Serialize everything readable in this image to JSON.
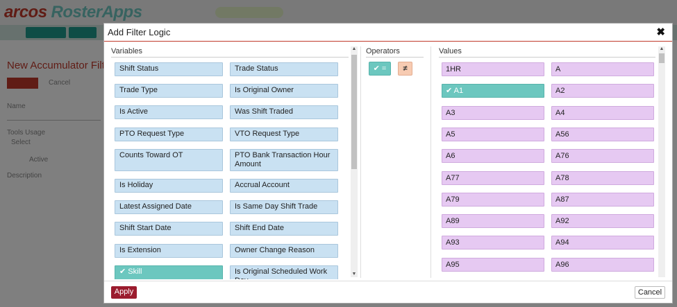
{
  "background": {
    "logo": "arcos",
    "logo_product": "RosterApps",
    "title": "New Accumulator Filt",
    "cancel_label": "Cancel",
    "name_label": "Name",
    "tools_usage_label": "Tools Usage",
    "select_value": "Select",
    "active_label": "Active",
    "description_label": "Description"
  },
  "dialog": {
    "title": "Add Filter Logic",
    "close_icon": "close-icon",
    "variables_title": "Variables",
    "operators_title": "Operators",
    "values_title": "Values",
    "apply_label": "Apply",
    "cancel_label": "Cancel"
  },
  "variables": [
    {
      "label": "Shift Status",
      "selected": false
    },
    {
      "label": "Trade Status",
      "selected": false
    },
    {
      "label": "Trade Type",
      "selected": false
    },
    {
      "label": "Is Original Owner",
      "selected": false
    },
    {
      "label": "Is Active",
      "selected": false
    },
    {
      "label": "Was Shift Traded",
      "selected": false
    },
    {
      "label": "PTO Request Type",
      "selected": false
    },
    {
      "label": "VTO Request Type",
      "selected": false
    },
    {
      "label": "Counts Toward OT",
      "selected": false
    },
    {
      "label": "PTO Bank Transaction Hour Amount",
      "selected": false
    },
    {
      "label": "Is Holiday",
      "selected": false
    },
    {
      "label": "Accrual Account",
      "selected": false
    },
    {
      "label": "Latest Assigned Date",
      "selected": false
    },
    {
      "label": "Is Same Day Shift Trade",
      "selected": false
    },
    {
      "label": "Shift Start Date",
      "selected": false
    },
    {
      "label": "Shift End Date",
      "selected": false
    },
    {
      "label": "Is Extension",
      "selected": false
    },
    {
      "label": "Owner Change Reason",
      "selected": false
    },
    {
      "label": "Skill",
      "selected": true
    },
    {
      "label": "Is Original Scheduled Work Day",
      "selected": false
    }
  ],
  "operators": [
    {
      "label": "=",
      "selected": true,
      "color": "#6cc7bf"
    },
    {
      "label": "≠",
      "selected": false,
      "color": "#f7cbb2"
    }
  ],
  "values": [
    {
      "label": "1HR",
      "selected": false
    },
    {
      "label": "A",
      "selected": false
    },
    {
      "label": "A1",
      "selected": true
    },
    {
      "label": "A2",
      "selected": false
    },
    {
      "label": "A3",
      "selected": false
    },
    {
      "label": "A4",
      "selected": false
    },
    {
      "label": "A5",
      "selected": false
    },
    {
      "label": "A56",
      "selected": false
    },
    {
      "label": "A6",
      "selected": false
    },
    {
      "label": "A76",
      "selected": false
    },
    {
      "label": "A77",
      "selected": false
    },
    {
      "label": "A78",
      "selected": false
    },
    {
      "label": "A79",
      "selected": false
    },
    {
      "label": "A87",
      "selected": false
    },
    {
      "label": "A89",
      "selected": false
    },
    {
      "label": "A92",
      "selected": false
    },
    {
      "label": "A93",
      "selected": false
    },
    {
      "label": "A94",
      "selected": false
    },
    {
      "label": "A95",
      "selected": false
    },
    {
      "label": "A96",
      "selected": false
    }
  ],
  "colors": {
    "accent": "#c0392b",
    "variable_bg": "#c9e1f2",
    "value_bg": "#e6c9f2",
    "selected_bg": "#6cc7bf",
    "apply_bg": "#9b1c2e"
  }
}
